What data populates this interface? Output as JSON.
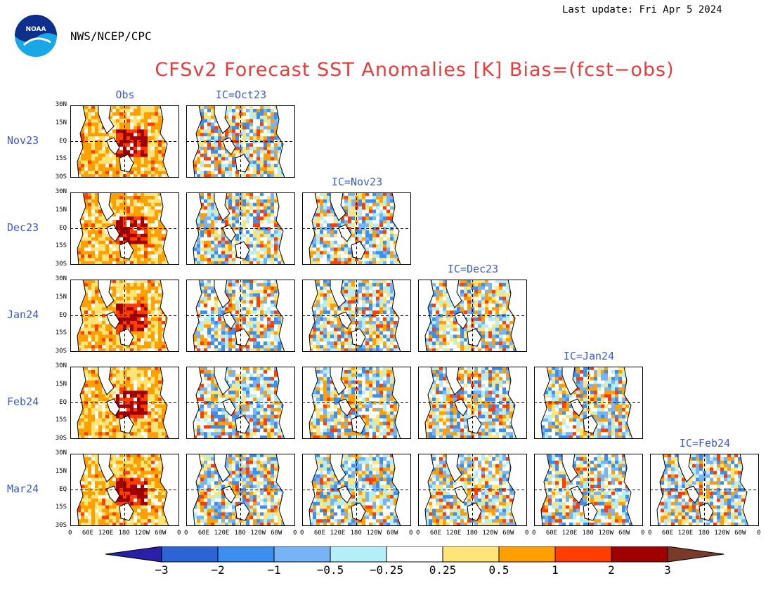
{
  "header": {
    "last_update": "Last update: Fri Apr 5 2024",
    "org": "NWS/NCEP/CPC",
    "title": "CFSv2 Forecast SST Anomalies [K] Bias=(fcst−obs)",
    "logo_text": "NOAA"
  },
  "colors": {
    "title": "#e83c3c",
    "labels": "#3a5ad6"
  },
  "chart_data": {
    "type": "heatmap",
    "columns": [
      "Obs",
      "IC=Oct23",
      "IC=Nov23",
      "IC=Dec23",
      "IC=Jan24",
      "IC=Feb24"
    ],
    "rows": [
      "Nov23",
      "Dec23",
      "Jan24",
      "Feb24",
      "Mar24"
    ],
    "lat_ticks": [
      "30N",
      "15N",
      "EQ",
      "15S",
      "30S"
    ],
    "lon_ticks": [
      "0",
      "60E",
      "120E",
      "180",
      "120W",
      "60W",
      "0"
    ],
    "colorbar": {
      "ticks": [
        "−3",
        "−2",
        "−1",
        "−0.5",
        "−0.25",
        "0.25",
        "0.5",
        "1",
        "2",
        "3"
      ],
      "colors": [
        "#2a1fa8",
        "#2c64d6",
        "#3c8ef0",
        "#78b4f5",
        "#b4eef6",
        "#ffffff",
        "#ffe478",
        "#ffa000",
        "#ff3e00",
        "#a00000",
        "#7a3a2a"
      ]
    },
    "panels_present": [
      [
        1,
        1,
        0,
        0,
        0,
        0
      ],
      [
        1,
        1,
        1,
        0,
        0,
        0
      ],
      [
        1,
        1,
        1,
        1,
        0,
        0
      ],
      [
        1,
        1,
        1,
        1,
        1,
        0
      ],
      [
        1,
        1,
        1,
        1,
        1,
        1
      ]
    ]
  }
}
